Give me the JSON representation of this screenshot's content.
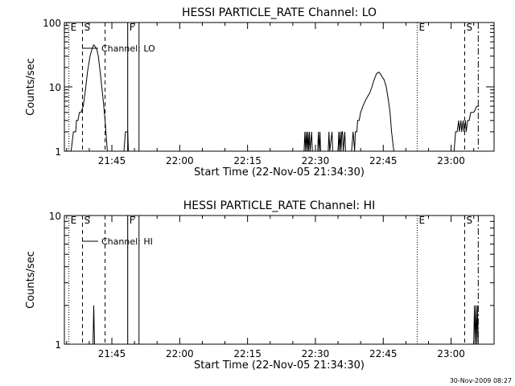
{
  "chart_data": [
    {
      "type": "line",
      "title": "HESSI PARTICLE_RATE Channel: LO",
      "xlabel": "Start Time (22-Nov-05 21:34:30)",
      "ylabel": "Counts/sec",
      "y_scale": "log",
      "ylim": [
        1,
        100
      ],
      "xlim": [
        "21:34:30",
        "23:09:30"
      ],
      "x_ticks": [
        "21:45",
        "22:00",
        "22:15",
        "22:30",
        "22:45",
        "23:00"
      ],
      "y_ticks": [
        "1",
        "10",
        "100"
      ],
      "grid": false,
      "legend": {
        "label": "Channel: LO",
        "placement": "top-left"
      },
      "event_markers": [
        {
          "label": "E",
          "time": "21:35:30",
          "style": "dotted"
        },
        {
          "label": "S",
          "time": "21:38:30",
          "style": "dashed"
        },
        {
          "label": "",
          "time": "21:43:30",
          "style": "dashed"
        },
        {
          "label": "",
          "time": "21:48:30",
          "style": "dotted"
        },
        {
          "label": "F",
          "time": "21:48:30",
          "style": "solid"
        },
        {
          "label": "",
          "time": "21:51:00",
          "style": "solid"
        },
        {
          "label": "E",
          "time": "22:52:30",
          "style": "dotted"
        },
        {
          "label": "S",
          "time": "23:03:00",
          "style": "dashed"
        },
        {
          "label": "",
          "time": "23:06:00",
          "style": "dashdot"
        }
      ],
      "series": [
        {
          "name": "Channel: LO",
          "segments": [
            [
              [
                "21:36:00",
                1
              ],
              [
                "21:36:30",
                2
              ],
              [
                "21:37:00",
                2
              ],
              [
                "21:37:10",
                3
              ],
              [
                "21:37:30",
                3
              ],
              [
                "21:37:50",
                4
              ],
              [
                "21:38:10",
                4
              ],
              [
                "21:38:40",
                5
              ],
              [
                "21:39:10",
                9
              ],
              [
                "21:39:40",
                18
              ],
              [
                "21:40:10",
                30
              ],
              [
                "21:40:40",
                40
              ],
              [
                "21:41:00",
                45
              ],
              [
                "21:41:20",
                42
              ],
              [
                "21:41:40",
                38
              ],
              [
                "21:42:00",
                30
              ],
              [
                "21:42:30",
                15
              ],
              [
                "21:43:00",
                7
              ],
              [
                "21:43:30",
                3
              ],
              [
                "21:44:00",
                1
              ]
            ],
            [
              [
                "21:47:40",
                1
              ],
              [
                "21:48:00",
                2
              ],
              [
                "21:48:30",
                2
              ],
              [
                "21:48:40",
                1
              ]
            ],
            [
              [
                "22:27:30",
                1
              ],
              [
                "22:27:40",
                2
              ],
              [
                "22:27:50",
                1
              ],
              [
                "22:28:00",
                2
              ],
              [
                "22:28:10",
                1
              ],
              [
                "22:28:20",
                2
              ],
              [
                "22:28:30",
                1
              ],
              [
                "22:28:40",
                2
              ],
              [
                "22:28:50",
                1
              ],
              [
                "22:29:10",
                2
              ],
              [
                "22:29:20",
                1
              ]
            ],
            [
              [
                "22:30:30",
                1
              ],
              [
                "22:30:40",
                2
              ],
              [
                "22:30:50",
                1
              ],
              [
                "22:31:00",
                2
              ],
              [
                "22:31:10",
                1
              ]
            ],
            [
              [
                "22:32:50",
                1
              ],
              [
                "22:33:00",
                2
              ],
              [
                "22:33:10",
                1
              ],
              [
                "22:33:40",
                2
              ],
              [
                "22:33:50",
                1
              ]
            ],
            [
              [
                "22:35:00",
                1
              ],
              [
                "22:35:10",
                2
              ],
              [
                "22:35:20",
                1
              ],
              [
                "22:35:30",
                2
              ],
              [
                "22:35:40",
                1
              ],
              [
                "22:35:50",
                2
              ],
              [
                "22:36:00",
                2
              ],
              [
                "22:36:10",
                1
              ],
              [
                "22:36:30",
                2
              ],
              [
                "22:36:40",
                1
              ]
            ],
            [
              [
                "22:38:00",
                1
              ],
              [
                "22:38:20",
                2
              ],
              [
                "22:38:40",
                1
              ],
              [
                "22:38:50",
                2
              ],
              [
                "22:39:10",
                2
              ],
              [
                "22:39:20",
                3
              ],
              [
                "22:39:40",
                3
              ],
              [
                "22:40:00",
                4
              ],
              [
                "22:40:30",
                5
              ],
              [
                "22:41:00",
                6
              ],
              [
                "22:41:30",
                7
              ],
              [
                "22:42:00",
                8
              ],
              [
                "22:42:30",
                10
              ],
              [
                "22:43:00",
                13
              ],
              [
                "22:43:30",
                16
              ],
              [
                "22:44:00",
                17
              ],
              [
                "22:44:20",
                16
              ],
              [
                "22:44:50",
                14
              ],
              [
                "22:45:10",
                13
              ],
              [
                "22:45:40",
                10
              ],
              [
                "22:46:10",
                6
              ],
              [
                "22:46:30",
                4
              ],
              [
                "22:46:50",
                2
              ],
              [
                "22:47:20",
                1
              ]
            ],
            [
              [
                "23:00:40",
                1
              ],
              [
                "23:01:00",
                2
              ],
              [
                "23:01:20",
                2
              ],
              [
                "23:01:40",
                3
              ],
              [
                "23:01:50",
                2
              ],
              [
                "23:02:10",
                3
              ],
              [
                "23:02:20",
                2
              ],
              [
                "23:02:40",
                3
              ],
              [
                "23:02:50",
                2
              ],
              [
                "23:03:10",
                3
              ],
              [
                "23:03:20",
                2
              ],
              [
                "23:03:40",
                3
              ],
              [
                "23:04:00",
                3
              ],
              [
                "23:04:20",
                4
              ],
              [
                "23:05:00",
                4
              ],
              [
                "23:05:40",
                5
              ],
              [
                "23:06:10",
                5
              ]
            ]
          ]
        }
      ]
    },
    {
      "type": "line",
      "title": "HESSI PARTICLE_RATE Channel: HI",
      "xlabel": "Start Time (22-Nov-05 21:34:30)",
      "ylabel": "Counts/sec",
      "y_scale": "log",
      "ylim": [
        1,
        10
      ],
      "xlim": [
        "21:34:30",
        "23:09:30"
      ],
      "x_ticks": [
        "21:45",
        "22:00",
        "22:15",
        "22:30",
        "22:45",
        "23:00"
      ],
      "y_ticks": [
        "1",
        "10"
      ],
      "grid": false,
      "legend": {
        "label": "Channel: HI",
        "placement": "top-left"
      },
      "event_markers": [
        {
          "label": "E",
          "time": "21:35:30",
          "style": "dotted"
        },
        {
          "label": "S",
          "time": "21:38:30",
          "style": "dashed"
        },
        {
          "label": "",
          "time": "21:43:30",
          "style": "dashed"
        },
        {
          "label": "",
          "time": "21:48:30",
          "style": "dotted"
        },
        {
          "label": "F",
          "time": "21:48:30",
          "style": "solid"
        },
        {
          "label": "",
          "time": "21:51:00",
          "style": "solid"
        },
        {
          "label": "E",
          "time": "22:52:30",
          "style": "dotted"
        },
        {
          "label": "S",
          "time": "23:03:00",
          "style": "dashed"
        },
        {
          "label": "",
          "time": "23:06:00",
          "style": "dashdot"
        }
      ],
      "series": [
        {
          "name": "Channel: HI",
          "segments": [
            [
              [
                "21:40:50",
                1
              ],
              [
                "21:41:00",
                2
              ],
              [
                "21:41:10",
                1
              ]
            ],
            [
              [
                "23:05:00",
                1
              ],
              [
                "23:05:10",
                2
              ],
              [
                "23:05:20",
                1
              ],
              [
                "23:05:30",
                2
              ],
              [
                "23:05:40",
                1
              ],
              [
                "23:05:50",
                2
              ],
              [
                "23:06:00",
                1
              ]
            ]
          ]
        }
      ]
    }
  ],
  "footer": {
    "timestamp": "30-Nov-2009 08:27"
  }
}
